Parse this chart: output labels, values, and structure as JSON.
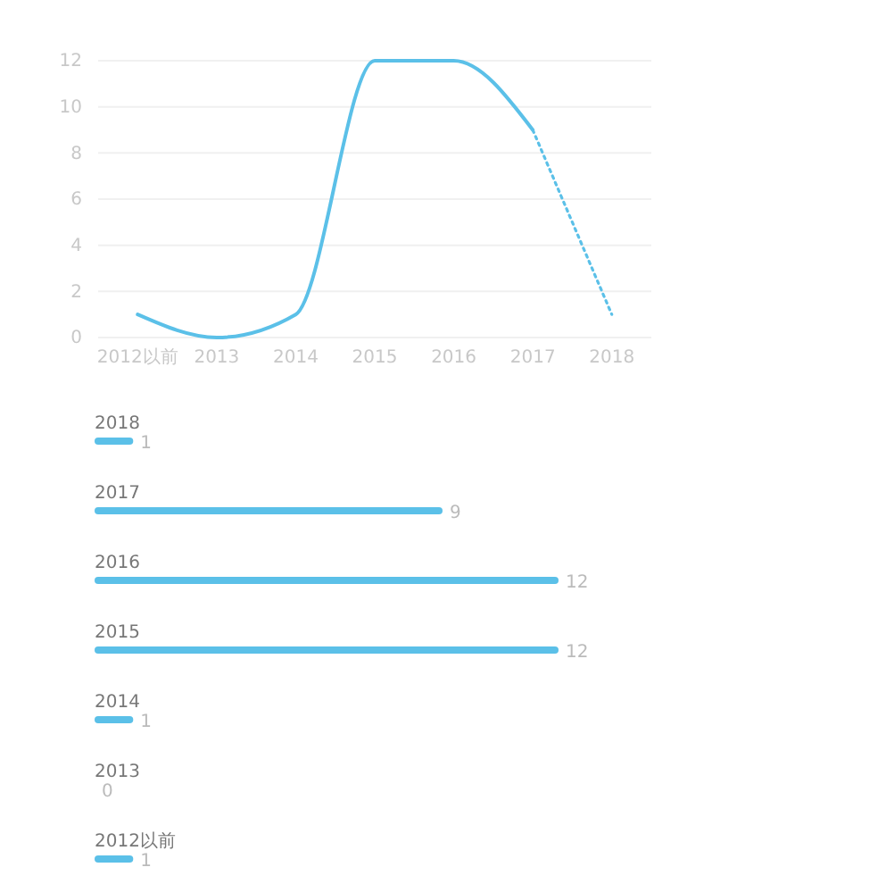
{
  "chart_data": [
    {
      "type": "line",
      "categories": [
        "2012以前",
        "2013",
        "2014",
        "2015",
        "2016",
        "2017",
        "2018"
      ],
      "ylim": [
        0,
        12
      ],
      "yticks": [
        0,
        2,
        4,
        6,
        8,
        10,
        12
      ],
      "grid": "y",
      "marker": "none",
      "series": [
        {
          "color": "#5bc0e8",
          "line_style": "solid",
          "values": [
            1,
            0,
            1,
            12,
            12,
            9,
            null
          ]
        },
        {
          "color": "#5bc0e8",
          "line_style": "dotted",
          "values": [
            null,
            null,
            null,
            null,
            null,
            9,
            1
          ]
        }
      ]
    },
    {
      "type": "bar",
      "orientation": "horizontal",
      "categories": [
        "2018",
        "2017",
        "2016",
        "2015",
        "2014",
        "2013",
        "2012以前"
      ],
      "values": [
        1,
        9,
        12,
        12,
        1,
        0,
        1
      ],
      "color": "#5bc0e8",
      "data_labels": true
    }
  ]
}
